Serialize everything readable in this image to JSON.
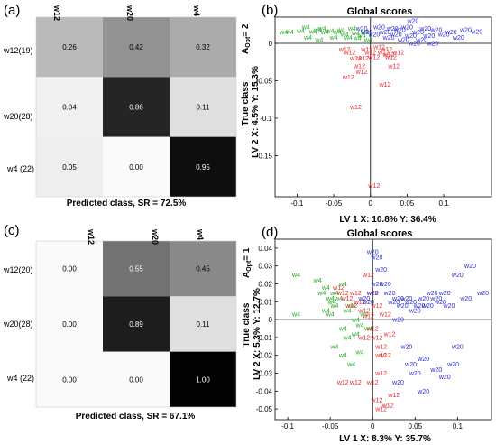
{
  "chart_data": [
    {
      "panel_label": "(a)",
      "type": "heatmap",
      "row_labels": [
        "w12(19)",
        "w20(28)",
        "w4 (22)"
      ],
      "col_labels": [
        "w12",
        "w20",
        "w4"
      ],
      "values": [
        [
          0.26,
          0.42,
          0.32
        ],
        [
          0.04,
          0.86,
          0.11
        ],
        [
          0.05,
          0.0,
          0.95
        ]
      ],
      "value_text": [
        [
          "0.26",
          "0.42",
          "0.32"
        ],
        [
          "0.04",
          "0.86",
          "0.11"
        ],
        [
          "0.05",
          "0.00",
          "0.95"
        ]
      ],
      "xlabel": "Predicted class, SR = 72.5%",
      "ylabel": "True class",
      "aopt_label": "A",
      "aopt_sub": "Opt",
      "aopt_value": "= 2"
    },
    {
      "panel_label": "(b)",
      "type": "scatter",
      "title": "Global scores",
      "xlabel": "LV 1  X: 10.8%  Y: 36.4%",
      "ylabel": "LV 2  X: 4.5%  Y: 15.3%",
      "xlim": [
        -0.13,
        0.165
      ],
      "ylim": [
        -0.205,
        0.035
      ],
      "xticks": [
        -0.1,
        -0.05,
        0,
        0.05,
        0.1
      ],
      "xtick_labels": [
        "-0.1",
        "-0.05",
        "0",
        "0.05",
        "0.1"
      ],
      "yticks": [
        0,
        -0.05,
        -0.1,
        -0.15
      ],
      "ytick_labels": [
        "0",
        "-0.05",
        "-0.1",
        "-0.15"
      ],
      "colors": {
        "w4": "#22aa22",
        "w12": "#e8262a",
        "w20": "#2a2ad8"
      },
      "series": [
        {
          "name": "w4",
          "points": [
            [
              -0.118,
              0.015
            ],
            [
              -0.11,
              0.015
            ],
            [
              -0.095,
              0.017
            ],
            [
              -0.088,
              0.022
            ],
            [
              -0.078,
              0.016
            ],
            [
              -0.072,
              0.018
            ],
            [
              -0.066,
              0.02
            ],
            [
              -0.062,
              0.015
            ],
            [
              -0.055,
              0.017
            ],
            [
              -0.05,
              0.008
            ],
            [
              -0.045,
              0.015
            ],
            [
              -0.04,
              0.018
            ],
            [
              -0.035,
              0.012
            ],
            [
              -0.03,
              0.008
            ],
            [
              -0.025,
              0.02
            ],
            [
              -0.02,
              0.014
            ],
            [
              -0.018,
              0.007
            ],
            [
              -0.012,
              0.01
            ],
            [
              -0.008,
              0.016
            ],
            [
              -0.003,
              0.005
            ],
            [
              -0.085,
              0.008
            ],
            [
              -0.07,
              0.005
            ]
          ]
        },
        {
          "name": "w12",
          "points": [
            [
              -0.035,
              -0.008
            ],
            [
              -0.028,
              -0.012
            ],
            [
              -0.02,
              -0.02
            ],
            [
              -0.015,
              -0.03
            ],
            [
              -0.012,
              -0.038
            ],
            [
              -0.01,
              -0.02
            ],
            [
              -0.005,
              -0.008
            ],
            [
              0.0,
              -0.012
            ],
            [
              0.005,
              -0.018
            ],
            [
              0.012,
              -0.005
            ],
            [
              0.018,
              -0.012
            ],
            [
              0.022,
              -0.008
            ],
            [
              0.028,
              -0.018
            ],
            [
              0.032,
              -0.03
            ],
            [
              0.038,
              -0.012
            ],
            [
              0.025,
              -0.015
            ],
            [
              -0.02,
              -0.085
            ],
            [
              -0.03,
              -0.045
            ],
            [
              0.02,
              -0.055
            ],
            [
              0.005,
              -0.19
            ]
          ]
        },
        {
          "name": "w20",
          "points": [
            [
              -0.012,
              0.02
            ],
            [
              -0.005,
              0.015
            ],
            [
              0.005,
              0.012
            ],
            [
              0.012,
              0.022
            ],
            [
              0.02,
              0.015
            ],
            [
              0.025,
              0.008
            ],
            [
              0.03,
              0.02
            ],
            [
              0.035,
              0.012
            ],
            [
              0.04,
              0.018
            ],
            [
              0.045,
              0.005
            ],
            [
              0.05,
              0.022
            ],
            [
              0.055,
              0.01
            ],
            [
              0.06,
              0.0
            ],
            [
              0.065,
              0.015
            ],
            [
              0.07,
              0.005
            ],
            [
              0.075,
              0.02
            ],
            [
              0.08,
              0.01
            ],
            [
              0.085,
              0.0
            ],
            [
              0.09,
              0.018
            ],
            [
              0.1,
              0.012
            ],
            [
              0.11,
              0.015
            ],
            [
              0.13,
              0.018
            ],
            [
              0.145,
              0.016
            ],
            [
              0.12,
              0.008
            ],
            [
              0.058,
              0.03
            ]
          ]
        }
      ]
    },
    {
      "panel_label": "(c)",
      "type": "heatmap",
      "row_labels": [
        "w12(20)",
        "w20(28)",
        "w4 (22)"
      ],
      "col_labels": [
        "w12",
        "w20",
        "w4"
      ],
      "values": [
        [
          0.0,
          0.55,
          0.45
        ],
        [
          0.0,
          0.89,
          0.11
        ],
        [
          0.0,
          0.0,
          1.0
        ]
      ],
      "value_text": [
        [
          "0.00",
          "0.55",
          "0.45"
        ],
        [
          "0.00",
          "0.89",
          "0.11"
        ],
        [
          "0.00",
          "0.00",
          "1.00"
        ]
      ],
      "xlabel": "Predicted class, SR = 67.1%",
      "ylabel": "True class",
      "aopt_label": "A",
      "aopt_sub": "Opt",
      "aopt_value": "= 1"
    },
    {
      "panel_label": "(d)",
      "type": "scatter",
      "title": "Global scores",
      "xlabel": "LV 1  X: 8.3%  Y: 35.7%",
      "ylabel": "LV 2  X: 5.3%  Y: 12.7%",
      "xlim": [
        -0.115,
        0.14
      ],
      "ylim": [
        -0.056,
        0.045
      ],
      "xticks": [
        -0.1,
        -0.05,
        0,
        0.05,
        0.1
      ],
      "xtick_labels": [
        "-0.1",
        "-0.05",
        "0",
        "0.05",
        "0.1"
      ],
      "yticks": [
        0.04,
        0.03,
        0.02,
        0.01,
        0,
        -0.01,
        -0.02,
        -0.03,
        -0.04,
        -0.05
      ],
      "ytick_labels": [
        "0.04",
        "0.03",
        "0.02",
        "0.01",
        "0",
        "-0.01",
        "-0.02",
        "-0.03",
        "-0.04",
        "-0.05"
      ],
      "colors": {
        "w4": "#22aa22",
        "w12": "#e8262a",
        "w20": "#2a2ad8"
      },
      "series": [
        {
          "name": "w4",
          "points": [
            [
              -0.09,
              0.025
            ],
            [
              -0.065,
              0.022
            ],
            [
              -0.06,
              0.015
            ],
            [
              -0.055,
              0.018
            ],
            [
              -0.05,
              0.012
            ],
            [
              -0.048,
              0.01
            ],
            [
              -0.045,
              0.008
            ],
            [
              -0.04,
              0.012
            ],
            [
              -0.055,
              0.005
            ],
            [
              -0.05,
              0.003
            ],
            [
              -0.045,
              0.015
            ],
            [
              -0.035,
              0.02
            ],
            [
              -0.03,
              0.005
            ],
            [
              -0.025,
              0.008
            ],
            [
              -0.02,
              0.0
            ],
            [
              -0.015,
              -0.003
            ],
            [
              -0.01,
              0.003
            ],
            [
              -0.005,
              -0.005
            ],
            [
              -0.035,
              -0.005
            ],
            [
              -0.03,
              -0.01
            ],
            [
              -0.02,
              -0.008
            ],
            [
              -0.035,
              -0.02
            ],
            [
              -0.025,
              -0.025
            ],
            [
              -0.015,
              -0.018
            ],
            [
              -0.045,
              -0.015
            ],
            [
              -0.09,
              0.003
            ]
          ]
        },
        {
          "name": "w12",
          "points": [
            [
              -0.04,
              0.018
            ],
            [
              -0.035,
              0.015
            ],
            [
              -0.03,
              0.012
            ],
            [
              -0.025,
              0.008
            ],
            [
              -0.02,
              0.015
            ],
            [
              -0.015,
              0.01
            ],
            [
              -0.01,
              0.005
            ],
            [
              -0.005,
              0.002
            ],
            [
              0.0,
              -0.005
            ],
            [
              0.005,
              -0.01
            ],
            [
              0.01,
              -0.015
            ],
            [
              0.005,
              0.008
            ],
            [
              0.0,
              0.015
            ],
            [
              -0.005,
              0.025
            ],
            [
              -0.01,
              -0.01
            ],
            [
              0.015,
              0.003
            ],
            [
              0.02,
              -0.008
            ],
            [
              0.015,
              -0.02
            ],
            [
              0.01,
              -0.03
            ],
            [
              0.0,
              -0.035
            ],
            [
              -0.035,
              -0.035
            ],
            [
              -0.02,
              -0.035
            ],
            [
              0.005,
              -0.045
            ],
            [
              0.01,
              -0.05
            ],
            [
              0.018,
              -0.048
            ],
            [
              0.025,
              -0.042
            ],
            [
              0.01,
              -0.02
            ]
          ]
        },
        {
          "name": "w20",
          "points": [
            [
              -0.01,
              0.012
            ],
            [
              -0.005,
              0.01
            ],
            [
              0.0,
              0.015
            ],
            [
              0.005,
              0.02
            ],
            [
              0.01,
              0.028
            ],
            [
              0.015,
              0.02
            ],
            [
              0.02,
              0.015
            ],
            [
              0.025,
              0.01
            ],
            [
              0.03,
              0.012
            ],
            [
              0.035,
              0.008
            ],
            [
              0.04,
              0.012
            ],
            [
              0.045,
              0.01
            ],
            [
              0.05,
              0.005
            ],
            [
              0.055,
              0.008
            ],
            [
              0.06,
              0.012
            ],
            [
              0.065,
              0.008
            ],
            [
              0.07,
              0.015
            ],
            [
              0.075,
              0.012
            ],
            [
              0.08,
              0.01
            ],
            [
              0.085,
              0.015
            ],
            [
              0.09,
              0.008
            ],
            [
              0.1,
              0.025
            ],
            [
              0.11,
              0.012
            ],
            [
              0.115,
              0.03
            ],
            [
              0.13,
              0.015
            ],
            [
              0.0,
              0.038
            ],
            [
              0.005,
              0.035
            ],
            [
              0.03,
              0.0
            ],
            [
              0.04,
              -0.015
            ],
            [
              0.045,
              -0.025
            ],
            [
              0.05,
              -0.03
            ],
            [
              0.06,
              -0.022
            ],
            [
              0.075,
              -0.028
            ],
            [
              0.085,
              -0.032
            ],
            [
              0.1,
              -0.015
            ],
            [
              0.095,
              -0.025
            ],
            [
              0.03,
              -0.035
            ],
            [
              0.06,
              -0.04
            ]
          ]
        }
      ]
    }
  ]
}
